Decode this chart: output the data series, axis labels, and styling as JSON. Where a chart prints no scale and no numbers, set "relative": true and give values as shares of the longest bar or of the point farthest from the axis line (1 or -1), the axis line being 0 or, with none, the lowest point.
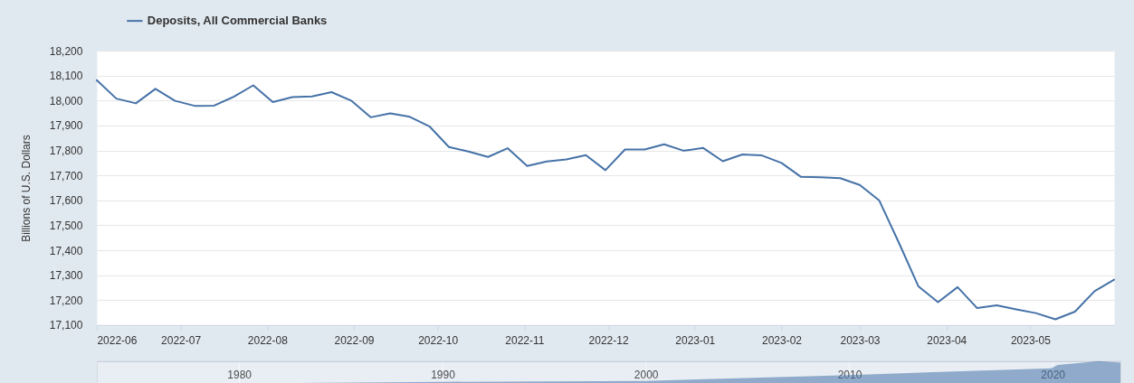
{
  "chart_data": [
    {
      "type": "line",
      "ylabel": "Billions of U.S. Dollars",
      "legend": "top left",
      "grid": "y",
      "xlim": [
        "2022-06-01",
        "2023-05-31"
      ],
      "xticks": [
        "2022-06",
        "2022-07",
        "2022-08",
        "2022-09",
        "2022-10",
        "2022-11",
        "2022-12",
        "2023-01",
        "2023-02",
        "2023-03",
        "2023-04",
        "2023-05"
      ],
      "ylim": [
        17100,
        18200
      ],
      "yticks": [
        {
          "value": 17100,
          "label": "17,100"
        },
        {
          "value": 17200,
          "label": "17,200"
        },
        {
          "value": 17300,
          "label": "17,300"
        },
        {
          "value": 17400,
          "label": "17,400"
        },
        {
          "value": 17500,
          "label": "17,500"
        },
        {
          "value": 17600,
          "label": "17,600"
        },
        {
          "value": 17700,
          "label": "17,700"
        },
        {
          "value": 17800,
          "label": "17,800"
        },
        {
          "value": 17900,
          "label": "17,900"
        },
        {
          "value": 18000,
          "label": "18,000"
        },
        {
          "value": 18100,
          "label": "18,100"
        },
        {
          "value": 18200,
          "label": "18,200"
        }
      ],
      "x": [
        "2022-06-01",
        "2022-06-08",
        "2022-06-15",
        "2022-06-22",
        "2022-06-29",
        "2022-07-06",
        "2022-07-13",
        "2022-07-20",
        "2022-07-27",
        "2022-08-03",
        "2022-08-10",
        "2022-08-17",
        "2022-08-24",
        "2022-08-31",
        "2022-09-07",
        "2022-09-14",
        "2022-09-21",
        "2022-09-28",
        "2022-10-05",
        "2022-10-12",
        "2022-10-19",
        "2022-10-26",
        "2022-11-02",
        "2022-11-09",
        "2022-11-16",
        "2022-11-23",
        "2022-11-30",
        "2022-12-07",
        "2022-12-14",
        "2022-12-21",
        "2022-12-28",
        "2023-01-04",
        "2023-01-11",
        "2023-01-18",
        "2023-01-25",
        "2023-02-01",
        "2023-02-08",
        "2023-02-15",
        "2023-02-22",
        "2023-03-01",
        "2023-03-08",
        "2023-03-15",
        "2023-03-22",
        "2023-03-29",
        "2023-04-05",
        "2023-04-12",
        "2023-04-19",
        "2023-04-26",
        "2023-05-03",
        "2023-05-10",
        "2023-05-17",
        "2023-05-24",
        "2023-05-31"
      ],
      "series": [
        {
          "name": "Deposits, All Commercial Banks",
          "color": "#4572a7",
          "values": [
            18082,
            18008,
            17989,
            18047,
            17999,
            17979,
            17980,
            18015,
            18061,
            17994,
            18014,
            18017,
            18034,
            18000,
            17933,
            17949,
            17935,
            17897,
            17814,
            17796,
            17774,
            17809,
            17738,
            17756,
            17764,
            17781,
            17721,
            17804,
            17804,
            17825,
            17799,
            17810,
            17757,
            17784,
            17780,
            17750,
            17694,
            17693,
            17689,
            17662,
            17599,
            17430,
            17255,
            17192,
            17252,
            17168,
            17179,
            17163,
            17148,
            17123,
            17154,
            17236,
            17282
          ]
        }
      ]
    },
    {
      "type": "area",
      "relative": true,
      "grid": "x",
      "xlim": [
        "1973-01",
        "2023-05"
      ],
      "xticks": [
        "1980",
        "1990",
        "2000",
        "2010",
        "2020"
      ],
      "x": [
        "1973-01",
        "1980-01",
        "1990-01",
        "2000-01",
        "2010-01",
        "2019-12",
        "2020-04",
        "2021-07",
        "2022-04",
        "2023-05"
      ],
      "series": [
        {
          "color": "#4572a7",
          "values": [
            0,
            0.05,
            0.12,
            0.16,
            0.41,
            0.7,
            0.84,
            0.94,
            1,
            0.94
          ]
        }
      ]
    }
  ]
}
